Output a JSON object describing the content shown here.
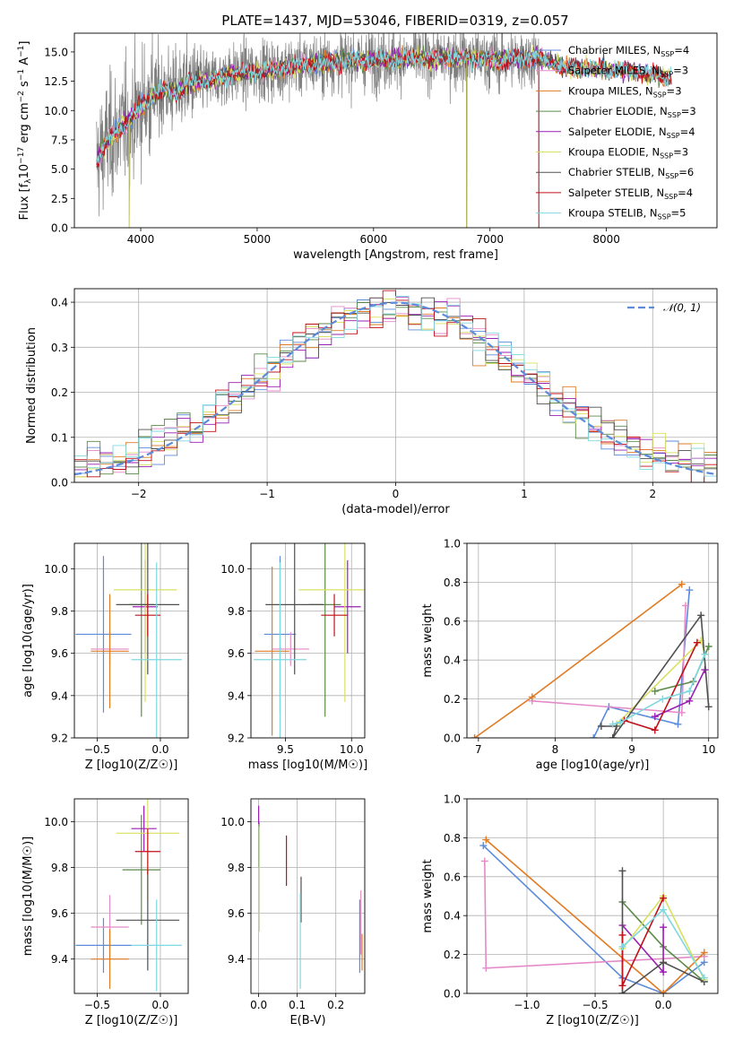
{
  "figure": {
    "title": "PLATE=1437, MJD=53046, FIBERID=0319, z=0.057"
  },
  "colors": {
    "Chabrier MILES": "#5b8bd9",
    "Salpeter MILES": "#e58ac8",
    "Kroupa MILES": "#e07b24",
    "Chabrier ELODIE": "#5c8a4a",
    "Salpeter ELODIE": "#9a1fb3",
    "Kroupa ELODIE": "#d8e060",
    "Chabrier STELIB": "#505050",
    "Salpeter STELIB": "#c0101a",
    "Kroupa STELIB": "#7fd8e0",
    "data": "#7f7f7f",
    "normal": "#5b8bd9",
    "grid": "#b0b0b0"
  },
  "legend_spectrum": [
    {
      "name": "Chabrier MILES",
      "nssp": "4"
    },
    {
      "name": "Salpeter MILES",
      "nssp": "3"
    },
    {
      "name": "Kroupa MILES",
      "nssp": "3"
    },
    {
      "name": "Chabrier ELODIE",
      "nssp": "3"
    },
    {
      "name": "Salpeter ELODIE",
      "nssp": "4"
    },
    {
      "name": "Kroupa ELODIE",
      "nssp": "3"
    },
    {
      "name": "Chabrier STELIB",
      "nssp": "6"
    },
    {
      "name": "Salpeter STELIB",
      "nssp": "4"
    },
    {
      "name": "Kroupa STELIB",
      "nssp": "5"
    }
  ],
  "chart_data": [
    {
      "id": "spectrum",
      "type": "line",
      "title": "PLATE=1437, MJD=53046, FIBERID=0319, z=0.057",
      "xlabel": "wavelength [Angstrom, rest frame]",
      "ylabel": "Flux [f_λ 10^-17 erg cm^-2 s^-1 A^-1]",
      "xlim": [
        3430,
        8950
      ],
      "ylim": [
        0,
        16.6
      ],
      "xticks": [
        4000,
        5000,
        6000,
        7000,
        8000
      ],
      "yticks": [
        0.0,
        2.5,
        5.0,
        7.5,
        10.0,
        12.5,
        15.0
      ],
      "continuum": [
        [
          3620,
          5.6
        ],
        [
          3700,
          7.2
        ],
        [
          3800,
          8.3
        ],
        [
          3900,
          9.2
        ],
        [
          4000,
          10.3
        ],
        [
          4100,
          11.3
        ],
        [
          4200,
          11.8
        ],
        [
          4300,
          11.6
        ],
        [
          4400,
          12.3
        ],
        [
          4600,
          12.6
        ],
        [
          4800,
          13.1
        ],
        [
          5000,
          13.4
        ],
        [
          5200,
          13.6
        ],
        [
          5400,
          13.9
        ],
        [
          5600,
          14.1
        ],
        [
          5800,
          14.3
        ],
        [
          6000,
          14.3
        ],
        [
          6200,
          14.4
        ],
        [
          6400,
          14.5
        ],
        [
          6600,
          14.5
        ],
        [
          6800,
          14.5
        ],
        [
          7000,
          14.3
        ],
        [
          7200,
          14.4
        ],
        [
          7400,
          14.6
        ],
        [
          7600,
          13.8
        ],
        [
          7800,
          13.6
        ],
        [
          8000,
          13.5
        ],
        [
          8200,
          13.4
        ],
        [
          8400,
          13.1
        ],
        [
          8560,
          12.7
        ]
      ],
      "data_range": [
        3620,
        7420
      ],
      "outlier_spikes": [
        [
          3900,
          0.0
        ],
        [
          6800,
          0.0
        ],
        [
          7420,
          0.0
        ]
      ],
      "legend_position": "upper right"
    },
    {
      "id": "residual_histogram",
      "type": "histogram",
      "xlabel": "(data-model)/error",
      "ylabel": "Normed distribution",
      "xlim": [
        -2.5,
        2.5
      ],
      "ylim": [
        0,
        0.43
      ],
      "xticks": [
        -2,
        -1,
        0,
        1,
        2
      ],
      "yticks": [
        0.0,
        0.1,
        0.2,
        0.3,
        0.4
      ],
      "bins": 50,
      "reference": {
        "name": "𝒩(0, 1)",
        "mean": 0,
        "sigma": 1
      },
      "legend_position": "upper right"
    },
    {
      "id": "age_vs_metallicity",
      "type": "errorbar",
      "xlabel": "Z [log10(Z/Z☉)]",
      "ylabel": "age [log10(age/yr)]",
      "xlim": [
        -0.68,
        0.22
      ],
      "ylim": [
        9.2,
        10.12
      ],
      "xticks": [
        -0.5,
        0.0
      ],
      "yticks": [
        9.2,
        9.4,
        9.6,
        9.8,
        10.0
      ],
      "points": [
        {
          "series": "Chabrier MILES",
          "x": -0.45,
          "xerr": 0.22,
          "y": 9.69,
          "yerr": 0.37
        },
        {
          "series": "Salpeter MILES",
          "x": -0.4,
          "xerr": 0.15,
          "y": 9.62,
          "yerr": 0.08
        },
        {
          "series": "Kroupa MILES",
          "x": -0.4,
          "xerr": 0.15,
          "y": 9.61,
          "yerr": 0.27
        },
        {
          "series": "Chabrier ELODIE",
          "x": -0.15,
          "xerr": 0.1,
          "y": 9.83,
          "yerr": 0.53
        },
        {
          "series": "Salpeter ELODIE",
          "x": -0.12,
          "xerr": 0.1,
          "y": 9.82,
          "yerr": 0.22
        },
        {
          "series": "Kroupa ELODIE",
          "x": -0.12,
          "xerr": 0.25,
          "y": 9.9,
          "yerr": 0.53
        },
        {
          "series": "Chabrier STELIB",
          "x": -0.1,
          "xerr": 0.25,
          "y": 9.83,
          "yerr": 0.33
        },
        {
          "series": "Salpeter STELIB",
          "x": -0.1,
          "xerr": 0.1,
          "y": 9.78,
          "yerr": 0.1
        },
        {
          "series": "Kroupa STELIB",
          "x": -0.03,
          "xerr": 0.2,
          "y": 9.57,
          "yerr": 0.46
        }
      ]
    },
    {
      "id": "age_vs_mass",
      "type": "errorbar",
      "xlabel": "mass [log10(M/M☉)]",
      "ylabel": "",
      "xlim": [
        9.24,
        10.1
      ],
      "ylim": [
        9.2,
        10.12
      ],
      "xticks": [
        9.5,
        10.0
      ],
      "yticks": [
        9.2,
        9.4,
        9.6,
        9.8,
        10.0
      ],
      "points": [
        {
          "series": "Chabrier MILES",
          "x": 9.46,
          "xerr": 0.12,
          "y": 9.69,
          "yerr": 0.37
        },
        {
          "series": "Salpeter MILES",
          "x": 9.54,
          "xerr": 0.14,
          "y": 9.62,
          "yerr": 0.08
        },
        {
          "series": "Kroupa MILES",
          "x": 9.4,
          "xerr": 0.13,
          "y": 9.61,
          "yerr": 0.4
        },
        {
          "series": "Chabrier ELODIE",
          "x": 9.8,
          "xerr": 0.12,
          "y": 9.83,
          "yerr": 0.53
        },
        {
          "series": "Salpeter ELODIE",
          "x": 9.97,
          "xerr": 0.1,
          "y": 9.82,
          "yerr": 0.22
        },
        {
          "series": "Kroupa ELODIE",
          "x": 9.95,
          "xerr": 0.35,
          "y": 9.9,
          "yerr": 0.53
        },
        {
          "series": "Chabrier STELIB",
          "x": 9.57,
          "xerr": 0.22,
          "y": 9.83,
          "yerr": 0.33
        },
        {
          "series": "Salpeter STELIB",
          "x": 9.87,
          "xerr": 0.1,
          "y": 9.78,
          "yerr": 0.1
        },
        {
          "series": "Kroupa STELIB",
          "x": 9.46,
          "xerr": 0.2,
          "y": 9.57,
          "yerr": 0.46
        }
      ]
    },
    {
      "id": "weight_vs_age",
      "type": "line",
      "xlabel": "age [log10(age/yr)]",
      "ylabel": "mass weight",
      "xlim": [
        6.85,
        10.12
      ],
      "ylim": [
        0,
        1.0
      ],
      "xticks": [
        7,
        8,
        9,
        10
      ],
      "yticks": [
        0.0,
        0.2,
        0.4,
        0.6,
        0.8,
        1.0
      ],
      "series": [
        {
          "name": "Chabrier MILES",
          "points": [
            [
              8.5,
              0.0
            ],
            [
              8.7,
              0.16
            ],
            [
              9.6,
              0.07
            ],
            [
              9.75,
              0.76
            ]
          ]
        },
        {
          "name": "Salpeter MILES",
          "points": [
            [
              7.7,
              0.19
            ],
            [
              9.65,
              0.13
            ],
            [
              9.7,
              0.68
            ]
          ]
        },
        {
          "name": "Kroupa MILES",
          "points": [
            [
              6.95,
              0.0
            ],
            [
              7.7,
              0.21
            ],
            [
              9.65,
              0.79
            ]
          ]
        },
        {
          "name": "Chabrier ELODIE",
          "points": [
            [
              9.3,
              0.24
            ],
            [
              9.8,
              0.29
            ],
            [
              10.0,
              0.47
            ]
          ]
        },
        {
          "name": "Salpeter ELODIE",
          "points": [
            [
              9.3,
              0.11
            ],
            [
              9.75,
              0.19
            ],
            [
              9.95,
              0.35
            ]
          ]
        },
        {
          "name": "Kroupa ELODIE",
          "points": [
            [
              8.8,
              0.07
            ],
            [
              9.9,
              0.5
            ],
            [
              9.95,
              0.43
            ]
          ]
        },
        {
          "name": "Chabrier STELIB",
          "points": [
            [
              8.6,
              0.06
            ],
            [
              8.8,
              0.06
            ],
            [
              8.75,
              0.0
            ],
            [
              9.9,
              0.63
            ],
            [
              10.0,
              0.16
            ]
          ]
        },
        {
          "name": "Salpeter STELIB",
          "points": [
            [
              8.9,
              0.09
            ],
            [
              9.3,
              0.04
            ],
            [
              9.85,
              0.49
            ]
          ]
        },
        {
          "name": "Kroupa STELIB",
          "points": [
            [
              8.75,
              0.07
            ],
            [
              8.85,
              0.08
            ],
            [
              9.4,
              0.2
            ],
            [
              9.75,
              0.24
            ],
            [
              9.95,
              0.43
            ]
          ]
        }
      ]
    },
    {
      "id": "mass_vs_metallicity",
      "type": "errorbar",
      "xlabel": "Z [log10(Z/Z☉)]",
      "ylabel": "mass [log10(M/M☉)]",
      "xlim": [
        -0.68,
        0.22
      ],
      "ylim": [
        9.25,
        10.1
      ],
      "xticks": [
        -0.5,
        0.0
      ],
      "yticks": [
        9.4,
        9.6,
        9.8,
        10.0
      ],
      "points": [
        {
          "series": "Chabrier MILES",
          "x": -0.45,
          "xerr": 0.22,
          "y": 9.46,
          "yerr": 0.12
        },
        {
          "series": "Salpeter MILES",
          "x": -0.4,
          "xerr": 0.15,
          "y": 9.54,
          "yerr": 0.14
        },
        {
          "series": "Kroupa MILES",
          "x": -0.4,
          "xerr": 0.15,
          "y": 9.4,
          "yerr": 0.13
        },
        {
          "series": "Chabrier ELODIE",
          "x": -0.15,
          "xerr": 0.15,
          "y": 9.79,
          "yerr": 0.24
        },
        {
          "series": "Salpeter ELODIE",
          "x": -0.13,
          "xerr": 0.1,
          "y": 9.97,
          "yerr": 0.1
        },
        {
          "series": "Kroupa ELODIE",
          "x": -0.1,
          "xerr": 0.25,
          "y": 9.95,
          "yerr": 0.3
        },
        {
          "series": "Chabrier STELIB",
          "x": -0.1,
          "xerr": 0.25,
          "y": 9.57,
          "yerr": 0.22
        },
        {
          "series": "Salpeter STELIB",
          "x": -0.1,
          "xerr": 0.1,
          "y": 9.87,
          "yerr": 0.1
        },
        {
          "series": "Kroupa STELIB",
          "x": -0.03,
          "xerr": 0.2,
          "y": 9.46,
          "yerr": 0.2
        }
      ]
    },
    {
      "id": "mass_vs_ebv",
      "type": "errorbar",
      "xlabel": "E(B-V)",
      "ylabel": "",
      "xlim": [
        -0.02,
        0.275
      ],
      "ylim": [
        9.25,
        10.1
      ],
      "xticks": [
        0.0,
        0.1,
        0.2
      ],
      "yticks": [
        9.4,
        9.6,
        9.8,
        10.0
      ],
      "points": [
        {
          "series": "Chabrier MILES",
          "x": 0.262,
          "y": 9.5,
          "yerr": 0.16
        },
        {
          "series": "Salpeter MILES",
          "x": 0.265,
          "y": 9.56,
          "yerr": 0.14
        },
        {
          "series": "Kroupa MILES",
          "x": 0.268,
          "y": 9.43,
          "yerr": 0.08
        },
        {
          "series": "Chabrier ELODIE",
          "x": 0.001,
          "y": 9.9,
          "yerr": 0.1
        },
        {
          "series": "Salpeter ELODIE",
          "x": 0.0,
          "y": 10.03,
          "yerr": 0.04
        },
        {
          "series": "Kroupa ELODIE",
          "x": 0.002,
          "y": 9.75,
          "yerr": 0.23
        },
        {
          "series": "Chabrier STELIB",
          "x": 0.11,
          "y": 9.66,
          "yerr": 0.1
        },
        {
          "series": "Salpeter STELIB",
          "x": 0.072,
          "y": 9.83,
          "yerr": 0.11
        },
        {
          "series": "Kroupa STELIB",
          "x": 0.108,
          "y": 9.48,
          "yerr": 0.21
        }
      ]
    },
    {
      "id": "weight_vs_metallicity",
      "type": "line",
      "xlabel": "Z [log10(Z/Z☉)]",
      "ylabel": "mass weight",
      "xlim": [
        -1.44,
        0.4
      ],
      "ylim": [
        0,
        1.0
      ],
      "xticks": [
        -1.0,
        -0.5,
        0.0
      ],
      "yticks": [
        0.0,
        0.2,
        0.4,
        0.6,
        0.8,
        1.0
      ],
      "series": [
        {
          "name": "Chabrier MILES",
          "points": [
            [
              -1.32,
              0.76
            ],
            [
              -0.3,
              0.08
            ],
            [
              0.0,
              0.0
            ],
            [
              0.3,
              0.16
            ]
          ]
        },
        {
          "name": "Salpeter MILES",
          "points": [
            [
              -1.31,
              0.68
            ],
            [
              -1.3,
              0.13
            ],
            [
              0.3,
              0.19
            ]
          ]
        },
        {
          "name": "Kroupa MILES",
          "points": [
            [
              -1.3,
              0.79
            ],
            [
              0.0,
              0.0
            ],
            [
              0.3,
              0.21
            ]
          ]
        },
        {
          "name": "Chabrier ELODIE",
          "points": [
            [
              -0.3,
              0.47
            ],
            [
              0.0,
              0.24
            ],
            [
              0.3,
              0.06
            ]
          ]
        },
        {
          "name": "Salpeter ELODIE",
          "points": [
            [
              -0.3,
              0.35
            ],
            [
              0.0,
              0.11
            ],
            [
              0.0,
              0.34
            ]
          ]
        },
        {
          "name": "Kroupa ELODIE",
          "points": [
            [
              -0.3,
              0.23
            ],
            [
              0.0,
              0.5
            ],
            [
              0.3,
              0.07
            ]
          ]
        },
        {
          "name": "Chabrier STELIB",
          "points": [
            [
              -0.3,
              0.63
            ],
            [
              -0.3,
              0.0
            ],
            [
              0.0,
              0.16
            ],
            [
              0.3,
              0.06
            ]
          ]
        },
        {
          "name": "Salpeter STELIB",
          "points": [
            [
              -0.3,
              0.3
            ],
            [
              -0.3,
              0.04
            ],
            [
              0.0,
              0.49
            ]
          ]
        },
        {
          "name": "Kroupa STELIB",
          "points": [
            [
              -0.3,
              0.24
            ],
            [
              0.0,
              0.43
            ],
            [
              0.3,
              0.08
            ]
          ]
        }
      ]
    }
  ]
}
